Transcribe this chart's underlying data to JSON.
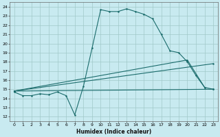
{
  "xlabel": "Humidex (Indice chaleur)",
  "bg_color": "#c8eaf0",
  "grid_color": "#a0c8c8",
  "line_color": "#1a6b6b",
  "xlim": [
    -0.5,
    23.5
  ],
  "ylim": [
    11.5,
    24.5
  ],
  "yticks": [
    12,
    13,
    14,
    15,
    16,
    17,
    18,
    19,
    20,
    21,
    22,
    23,
    24
  ],
  "xticks": [
    0,
    1,
    2,
    3,
    4,
    5,
    6,
    7,
    8,
    9,
    10,
    11,
    12,
    13,
    14,
    15,
    16,
    17,
    18,
    19,
    20,
    21,
    22,
    23
  ],
  "line1_x": [
    0,
    1,
    2,
    3,
    4,
    5,
    6,
    7,
    8,
    9,
    10,
    11,
    12,
    13,
    14,
    15,
    16,
    17,
    18,
    19,
    20,
    21,
    22,
    23
  ],
  "line1_y": [
    14.7,
    14.3,
    14.3,
    14.5,
    14.4,
    14.7,
    14.3,
    12.2,
    15.3,
    19.5,
    23.7,
    23.5,
    23.5,
    23.8,
    23.5,
    23.2,
    22.7,
    21.0,
    19.2,
    19.0,
    18.0,
    16.5,
    15.2,
    15.0
  ],
  "line2_x": [
    0,
    23
  ],
  "line2_y": [
    14.8,
    15.0
  ],
  "line3_x": [
    0,
    23
  ],
  "line3_y": [
    14.8,
    17.8
  ],
  "line4_x": [
    0,
    20,
    22
  ],
  "line4_y": [
    14.8,
    18.2,
    15.2
  ]
}
